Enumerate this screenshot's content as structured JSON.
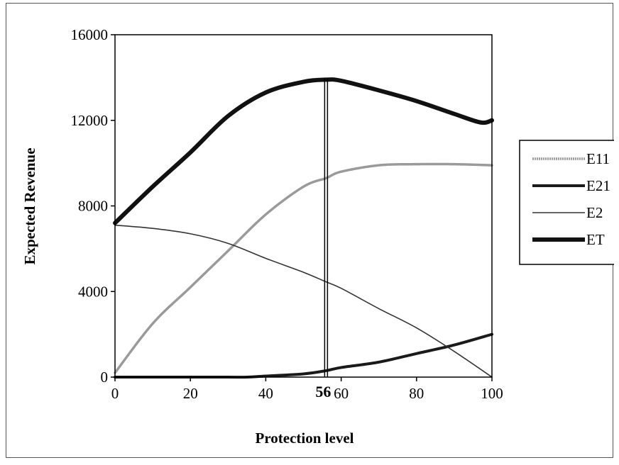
{
  "chart_data": {
    "type": "line",
    "xlabel": "Protection level",
    "ylabel": "Expected Revenue",
    "xlim": [
      0,
      100
    ],
    "ylim": [
      0,
      16000
    ],
    "xticks": [
      "0",
      "20",
      "40",
      "60",
      "80",
      "100"
    ],
    "yticks": [
      "0",
      "4000",
      "8000",
      "12000",
      "16000"
    ],
    "legend": "right",
    "annotation": {
      "label": "56",
      "x": 56
    },
    "series": [
      {
        "name": "E11",
        "color": "#9a9a9a",
        "x": [
          0,
          10,
          20,
          30,
          40,
          50,
          56,
          60,
          70,
          80,
          90,
          100
        ],
        "y": [
          200,
          2500,
          4200,
          5900,
          7600,
          8900,
          9300,
          9600,
          9900,
          9950,
          9950,
          9900
        ]
      },
      {
        "name": "E21",
        "color": "#1a1a1a",
        "x": [
          0,
          10,
          20,
          30,
          35,
          40,
          50,
          56,
          60,
          70,
          80,
          90,
          100
        ],
        "y": [
          0,
          0,
          0,
          0,
          0,
          50,
          150,
          300,
          450,
          700,
          1100,
          1500,
          2000
        ]
      },
      {
        "name": "E2",
        "color": "#333333",
        "x": [
          0,
          10,
          20,
          30,
          40,
          50,
          56,
          60,
          70,
          80,
          90,
          100
        ],
        "y": [
          7100,
          6950,
          6700,
          6250,
          5550,
          4900,
          4450,
          4150,
          3200,
          2300,
          1200,
          0
        ]
      },
      {
        "name": "ET",
        "color": "#111111",
        "x": [
          0,
          10,
          20,
          30,
          40,
          50,
          56,
          60,
          70,
          80,
          90,
          97,
          100
        ],
        "y": [
          7200,
          8900,
          10500,
          12200,
          13300,
          13800,
          13900,
          13850,
          13400,
          12900,
          12300,
          11900,
          12000
        ]
      }
    ]
  }
}
